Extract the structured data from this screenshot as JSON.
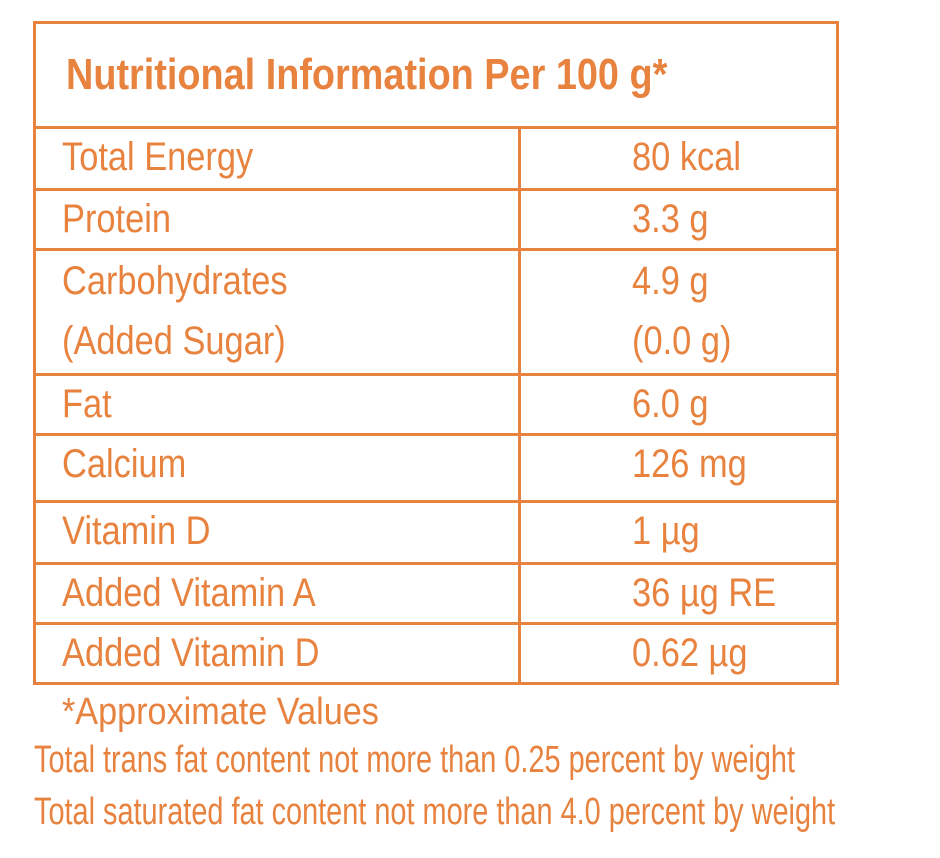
{
  "title": "Nutritional Information Per 100 g*",
  "rows": [
    {
      "nutrient": [
        "Total Energy"
      ],
      "value": [
        "80 kcal"
      ]
    },
    {
      "nutrient": [
        "Protein"
      ],
      "value": [
        "3.3 g"
      ]
    },
    {
      "nutrient": [
        "Carbohydrates",
        "(Added Sugar)"
      ],
      "value": [
        "4.9 g",
        "(0.0 g)"
      ]
    },
    {
      "nutrient": [
        "Fat"
      ],
      "value": [
        "6.0 g"
      ]
    },
    {
      "nutrient": [
        "Calcium"
      ],
      "value": [
        "126 mg"
      ]
    },
    {
      "nutrient": [
        "Vitamin D"
      ],
      "value": [
        "1  µg"
      ]
    },
    {
      "nutrient": [
        "Added Vitamin A"
      ],
      "value": [
        "36  µg RE"
      ]
    },
    {
      "nutrient": [
        "Added Vitamin D"
      ],
      "value": [
        "0.62 µg"
      ]
    }
  ],
  "footnotes": {
    "approx": "*Approximate Values",
    "trans_fat": "Total trans fat content not more than 0.25 percent by weight",
    "saturated_fat": "Total saturated fat content not more than 4.0 percent by weight"
  },
  "colors": {
    "accent": "#E8823F",
    "background": "#FFFFFF"
  }
}
